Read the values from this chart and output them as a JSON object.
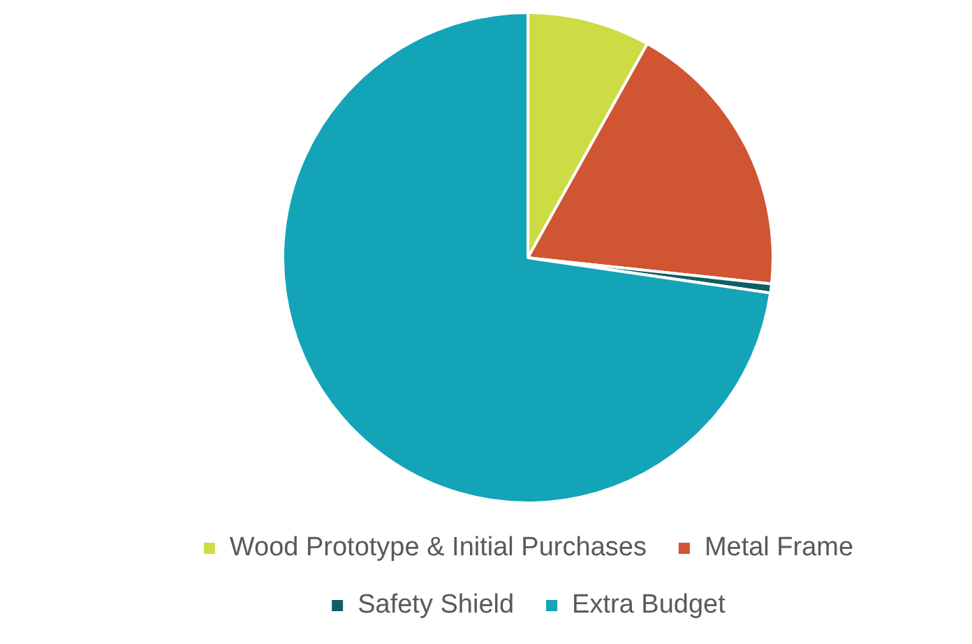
{
  "chart_data": {
    "type": "pie",
    "categories": [
      "Wood Prototype & Initial Purchases",
      "Metal Frame",
      "Safety Shield",
      "Extra Budget"
    ],
    "values": [
      8.1,
      18.6,
      0.6,
      72.7
    ],
    "colors": [
      "#cddc45",
      "#d05532",
      "#0f5e66",
      "#13a4b8"
    ],
    "legend": "bottom"
  }
}
